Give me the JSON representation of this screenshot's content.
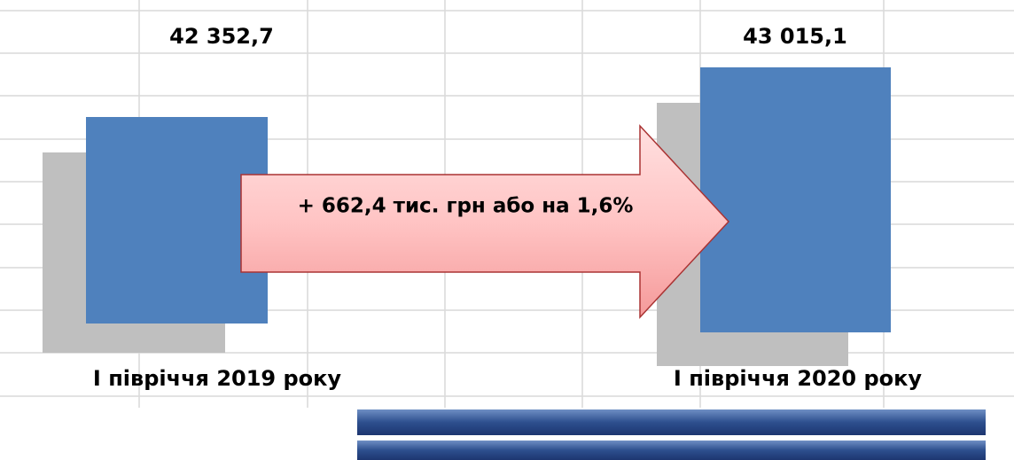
{
  "items": [
    {
      "value": "42 352,7",
      "label": "І півріччя 2019 року"
    },
    {
      "value": "43 015,1",
      "label": "І півріччя 2020 року"
    }
  ],
  "arrow_text": "+ 662,4 тис. грн або на 1,6%"
}
